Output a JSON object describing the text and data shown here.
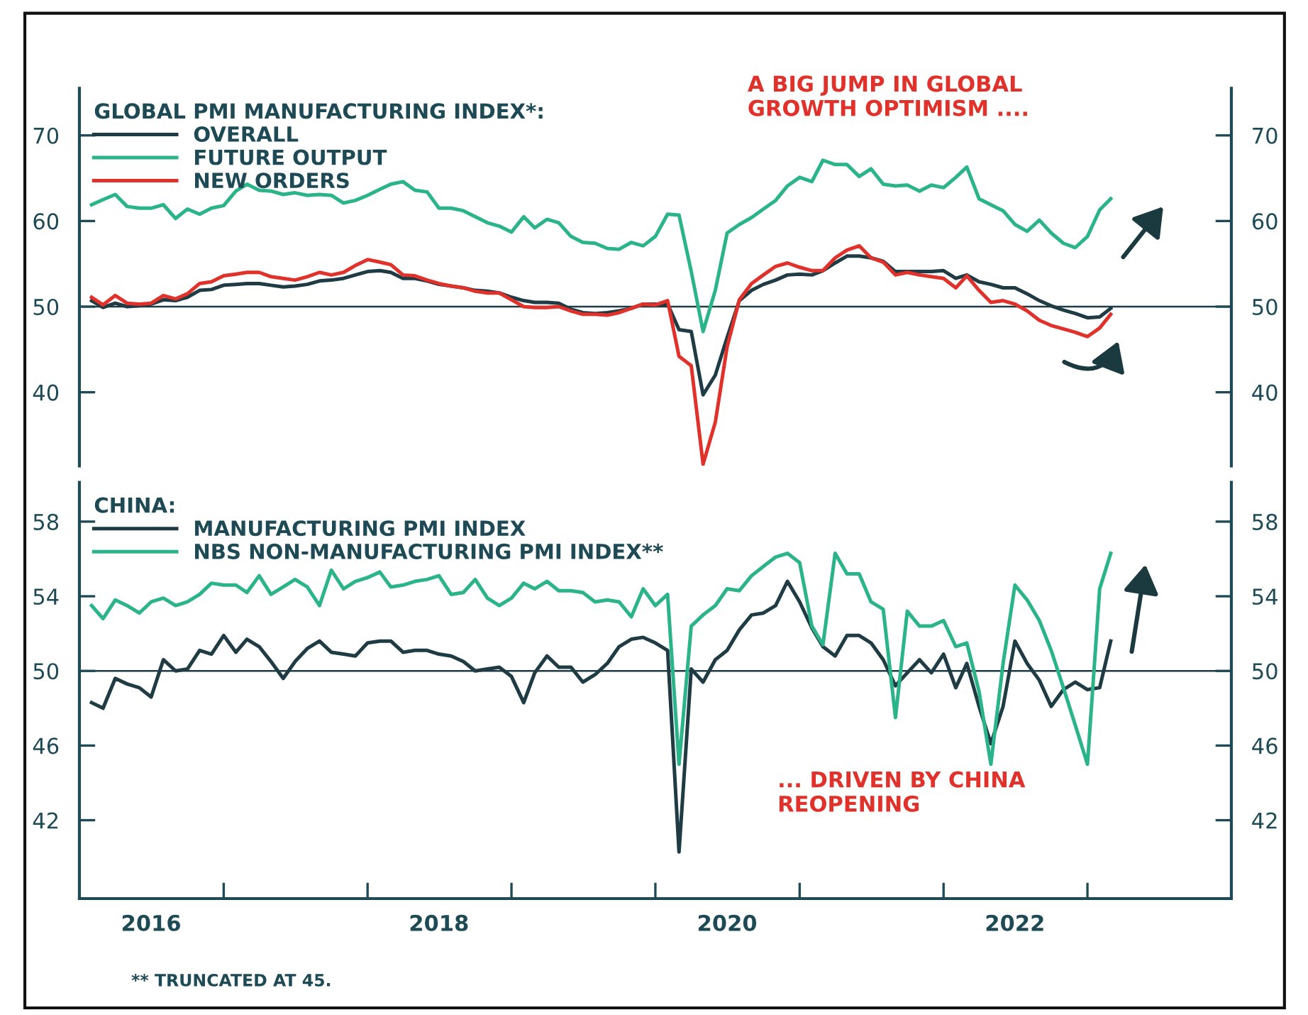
{
  "chart_data": [
    {
      "type": "line",
      "legend_title": "GLOBAL PMI MANUFACTURING INDEX*:",
      "legend": "top left",
      "tick_labels": "y",
      "annotations": [
        "A BIG JUMP IN GLOBAL\nGROWTH OPTIMISM ...."
      ],
      "xlim": [
        "2016-01",
        "2024-01"
      ],
      "ylim": [
        31.4,
        75.5
      ],
      "yticks": [
        40,
        50,
        60,
        70
      ],
      "y2lim": [
        31.4,
        75.5
      ],
      "y2ticks": [
        40,
        50,
        60,
        70
      ],
      "ref_lines": [
        {
          "axis": "y",
          "value": 50,
          "color": "#1f3b44"
        }
      ],
      "x": [
        "2016-02",
        "2016-03",
        "2016-04",
        "2016-05",
        "2016-06",
        "2016-07",
        "2016-08",
        "2016-09",
        "2016-10",
        "2016-11",
        "2016-12",
        "2017-01",
        "2017-02",
        "2017-03",
        "2017-04",
        "2017-05",
        "2017-06",
        "2017-07",
        "2017-08",
        "2017-09",
        "2017-10",
        "2017-11",
        "2017-12",
        "2018-01",
        "2018-02",
        "2018-03",
        "2018-04",
        "2018-05",
        "2018-06",
        "2018-07",
        "2018-08",
        "2018-09",
        "2018-10",
        "2018-11",
        "2018-12",
        "2019-01",
        "2019-02",
        "2019-03",
        "2019-04",
        "2019-05",
        "2019-06",
        "2019-07",
        "2019-08",
        "2019-09",
        "2019-10",
        "2019-11",
        "2019-12",
        "2020-01",
        "2020-02",
        "2020-03",
        "2020-04",
        "2020-05",
        "2020-06",
        "2020-07",
        "2020-08",
        "2020-09",
        "2020-10",
        "2020-11",
        "2020-12",
        "2021-01",
        "2021-02",
        "2021-03",
        "2021-04",
        "2021-05",
        "2021-06",
        "2021-07",
        "2021-08",
        "2021-09",
        "2021-10",
        "2021-11",
        "2021-12",
        "2022-01",
        "2022-02",
        "2022-03",
        "2022-04",
        "2022-05",
        "2022-06",
        "2022-07",
        "2022-08",
        "2022-09",
        "2022-10",
        "2022-11",
        "2022-12",
        "2023-01",
        "2023-02",
        "2023-03"
      ],
      "series": [
        {
          "name": "OVERALL",
          "color": "#1f3b44",
          "values": [
            50.7,
            49.9,
            50.4,
            50.0,
            50.1,
            50.3,
            50.8,
            50.7,
            51.1,
            51.9,
            52.0,
            52.5,
            52.6,
            52.7,
            52.7,
            52.5,
            52.3,
            52.4,
            52.6,
            53.0,
            53.1,
            53.3,
            53.7,
            54.1,
            54.2,
            54.0,
            53.3,
            53.3,
            53.0,
            52.6,
            52.4,
            52.2,
            51.9,
            51.8,
            51.6,
            51.1,
            50.7,
            50.5,
            50.5,
            50.4,
            49.7,
            49.3,
            49.2,
            49.3,
            49.5,
            49.8,
            50.3,
            50.3,
            50.3,
            47.3,
            47.1,
            39.7,
            42.0,
            46.4,
            50.7,
            51.9,
            52.6,
            53.1,
            53.7,
            53.8,
            53.7,
            54.2,
            55.1,
            55.9,
            55.9,
            55.7,
            55.3,
            54.1,
            54.1,
            54.1,
            54.1,
            54.2,
            53.3,
            53.7,
            52.9,
            52.6,
            52.2,
            52.2,
            51.5,
            50.7,
            50.1,
            49.6,
            49.2,
            48.7,
            48.8,
            49.8
          ]
        },
        {
          "name": "FUTURE OUTPUT",
          "color": "#2bb38a",
          "values": [
            61.9,
            62.5,
            63.1,
            61.7,
            61.5,
            61.5,
            61.9,
            60.3,
            61.4,
            60.8,
            61.5,
            61.8,
            63.5,
            64.3,
            63.6,
            63.5,
            63.1,
            63.3,
            63.0,
            63.1,
            63.0,
            62.1,
            62.4,
            63.0,
            63.7,
            64.3,
            64.6,
            63.6,
            63.4,
            61.5,
            61.5,
            61.2,
            60.5,
            59.8,
            59.4,
            58.7,
            60.5,
            59.2,
            60.2,
            59.8,
            58.2,
            57.5,
            57.4,
            56.8,
            56.7,
            57.5,
            57.1,
            58.2,
            60.8,
            60.7,
            54.1,
            47.1,
            51.9,
            58.6,
            59.6,
            60.4,
            61.4,
            62.4,
            64.1,
            65.1,
            64.6,
            67.1,
            66.6,
            66.6,
            65.2,
            66.1,
            64.3,
            64.1,
            64.2,
            63.5,
            64.2,
            63.9,
            65.1,
            66.3,
            62.6,
            61.9,
            61.2,
            59.6,
            58.8,
            60.1,
            58.6,
            57.4,
            56.9,
            58.2,
            61.3,
            62.6
          ]
        },
        {
          "name": "NEW ORDERS",
          "color": "#e0312b",
          "values": [
            51.1,
            50.2,
            51.3,
            50.4,
            50.3,
            50.4,
            51.3,
            50.9,
            51.5,
            52.7,
            52.9,
            53.6,
            53.8,
            54.0,
            54.0,
            53.5,
            53.3,
            53.1,
            53.5,
            54.0,
            53.7,
            54.0,
            54.8,
            55.5,
            55.2,
            54.9,
            53.7,
            53.6,
            53.1,
            52.7,
            52.4,
            52.2,
            51.8,
            51.6,
            51.6,
            50.8,
            50.0,
            49.9,
            49.9,
            50.0,
            49.5,
            49.1,
            49.1,
            49.0,
            49.3,
            49.8,
            50.3,
            50.2,
            50.7,
            44.2,
            43.1,
            31.6,
            36.5,
            45.3,
            50.8,
            52.7,
            53.7,
            54.7,
            55.1,
            54.6,
            54.2,
            54.2,
            55.7,
            56.6,
            57.1,
            55.7,
            55.2,
            53.7,
            54.0,
            53.7,
            53.5,
            53.3,
            52.2,
            53.6,
            51.9,
            50.5,
            50.7,
            50.3,
            49.5,
            48.4,
            47.8,
            47.4,
            47.0,
            46.5,
            47.5,
            49.1
          ]
        }
      ]
    },
    {
      "type": "line",
      "legend_title": "CHINA:",
      "legend": "top left",
      "annotations": [
        "... DRIVEN BY CHINA\nREOPENING",
        "** TRUNCATED AT 45."
      ],
      "xlim": [
        "2016-01",
        "2024-01"
      ],
      "xticks": [
        {
          "value": "2016-07",
          "label": "2016"
        },
        {
          "value": "2017-01",
          "label": null
        },
        {
          "value": "2018-01",
          "label": null
        },
        {
          "value": "2018-07",
          "label": "2018"
        },
        {
          "value": "2019-01",
          "label": null
        },
        {
          "value": "2020-01",
          "label": null
        },
        {
          "value": "2020-07",
          "label": "2020"
        },
        {
          "value": "2021-01",
          "label": null
        },
        {
          "value": "2022-01",
          "label": null
        },
        {
          "value": "2022-07",
          "label": "2022"
        },
        {
          "value": "2023-01",
          "label": null
        }
      ],
      "ylim": [
        37.8,
        60.1
      ],
      "yticks": [
        42,
        46,
        50,
        54,
        58
      ],
      "y2lim": [
        37.8,
        60.1
      ],
      "y2ticks": [
        42,
        46,
        50,
        54,
        58
      ],
      "ref_lines": [
        {
          "axis": "y",
          "value": 50,
          "color": "#1f3b44"
        }
      ],
      "x": [
        "2016-02",
        "2016-03",
        "2016-04",
        "2016-05",
        "2016-06",
        "2016-07",
        "2016-08",
        "2016-09",
        "2016-10",
        "2016-11",
        "2016-12",
        "2017-01",
        "2017-02",
        "2017-03",
        "2017-04",
        "2017-05",
        "2017-06",
        "2017-07",
        "2017-08",
        "2017-09",
        "2017-10",
        "2017-11",
        "2017-12",
        "2018-01",
        "2018-02",
        "2018-03",
        "2018-04",
        "2018-05",
        "2018-06",
        "2018-07",
        "2018-08",
        "2018-09",
        "2018-10",
        "2018-11",
        "2018-12",
        "2019-01",
        "2019-02",
        "2019-03",
        "2019-04",
        "2019-05",
        "2019-06",
        "2019-07",
        "2019-08",
        "2019-09",
        "2019-10",
        "2019-11",
        "2019-12",
        "2020-01",
        "2020-02",
        "2020-03",
        "2020-04",
        "2020-05",
        "2020-06",
        "2020-07",
        "2020-08",
        "2020-09",
        "2020-10",
        "2020-11",
        "2020-12",
        "2021-01",
        "2021-02",
        "2021-03",
        "2021-04",
        "2021-05",
        "2021-06",
        "2021-07",
        "2021-08",
        "2021-09",
        "2021-10",
        "2021-11",
        "2021-12",
        "2022-01",
        "2022-02",
        "2022-03",
        "2022-04",
        "2022-05",
        "2022-06",
        "2022-07",
        "2022-08",
        "2022-09",
        "2022-10",
        "2022-11",
        "2022-12",
        "2023-01",
        "2023-02",
        "2023-03"
      ],
      "series": [
        {
          "name": "MANUFACTURING PMI INDEX",
          "color": "#1f3b44",
          "values": [
            48.3,
            48.0,
            49.6,
            49.3,
            49.1,
            48.6,
            50.6,
            50.0,
            50.1,
            51.1,
            50.9,
            51.9,
            51.0,
            51.7,
            51.3,
            50.5,
            49.6,
            50.5,
            51.2,
            51.6,
            51.0,
            50.9,
            50.8,
            51.5,
            51.6,
            51.6,
            51.0,
            51.1,
            51.1,
            50.9,
            50.8,
            50.5,
            50.0,
            50.1,
            50.2,
            49.7,
            48.3,
            49.9,
            50.8,
            50.2,
            50.2,
            49.4,
            49.8,
            50.4,
            51.3,
            51.7,
            51.8,
            51.5,
            51.1,
            40.3,
            50.1,
            49.4,
            50.6,
            51.1,
            52.2,
            53.0,
            53.1,
            53.5,
            54.8,
            53.7,
            52.3,
            51.3,
            50.8,
            51.9,
            51.9,
            51.5,
            50.6,
            49.2,
            49.9,
            50.6,
            49.9,
            50.9,
            49.1,
            50.4,
            48.1,
            46.1,
            48.1,
            51.6,
            50.4,
            49.5,
            48.1,
            49.0,
            49.4,
            49.0,
            49.1,
            51.6
          ]
        },
        {
          "name": "NBS NON-MANUFACTURING PMI INDEX**",
          "color": "#2bb38a",
          "values": [
            53.5,
            52.8,
            53.8,
            53.5,
            53.1,
            53.7,
            53.9,
            53.5,
            53.7,
            54.1,
            54.7,
            54.6,
            54.6,
            54.2,
            55.1,
            54.1,
            54.5,
            54.9,
            54.5,
            53.5,
            55.4,
            54.4,
            54.8,
            55.0,
            55.3,
            54.5,
            54.6,
            54.8,
            54.9,
            55.1,
            54.1,
            54.2,
            54.9,
            53.9,
            53.5,
            53.9,
            54.7,
            54.4,
            54.8,
            54.3,
            54.3,
            54.2,
            53.7,
            53.8,
            53.7,
            52.9,
            54.4,
            53.5,
            54.1,
            45.0,
            52.4,
            53.0,
            53.5,
            54.4,
            54.3,
            55.1,
            55.6,
            56.1,
            56.3,
            55.8,
            52.4,
            51.4,
            56.3,
            55.2,
            55.2,
            53.7,
            53.3,
            47.5,
            53.2,
            52.4,
            52.4,
            52.7,
            51.3,
            51.5,
            48.9,
            45.0,
            50.4,
            54.6,
            53.8,
            52.7,
            51.1,
            49.1,
            47.1,
            45.0,
            54.4,
            56.3
          ]
        }
      ]
    }
  ]
}
